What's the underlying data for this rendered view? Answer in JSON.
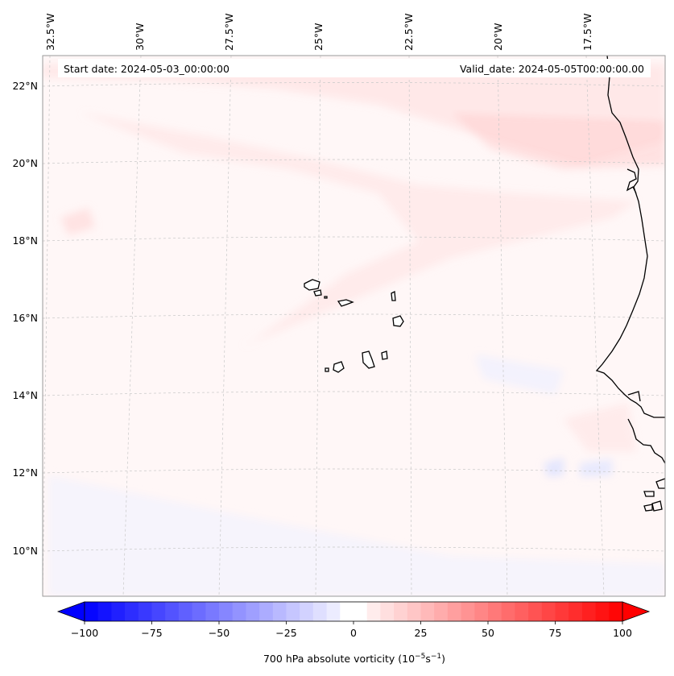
{
  "header": {
    "start_date": "Start date: 2024-05-03_00:00:00",
    "valid_date": "Valid_date: 2024-05-05T00:00:00.00"
  },
  "map": {
    "lon_labels": [
      "32.5°W",
      "30°W",
      "27.5°W",
      "25°W",
      "22.5°W",
      "20°W",
      "17.5°W"
    ],
    "lat_labels": [
      "22°N",
      "20°N",
      "18°N",
      "16°N",
      "14°N",
      "12°N",
      "10°N"
    ],
    "gridlines": true,
    "colors": {
      "positive": "#ff0000",
      "negative": "#0000ff",
      "coast": "#000000",
      "gridline": "#c8c8c8"
    }
  },
  "colorbar": {
    "tick_labels": [
      "−100",
      "−75",
      "−50",
      "−25",
      "0",
      "25",
      "50",
      "75",
      "100"
    ],
    "label_main": "700 hPa absolute vorticity (10",
    "label_exp1": "−5",
    "label_mid": "s",
    "label_exp2": "−1",
    "label_end": ")",
    "vmin": -100,
    "vmax": 100,
    "extend": "both"
  }
}
